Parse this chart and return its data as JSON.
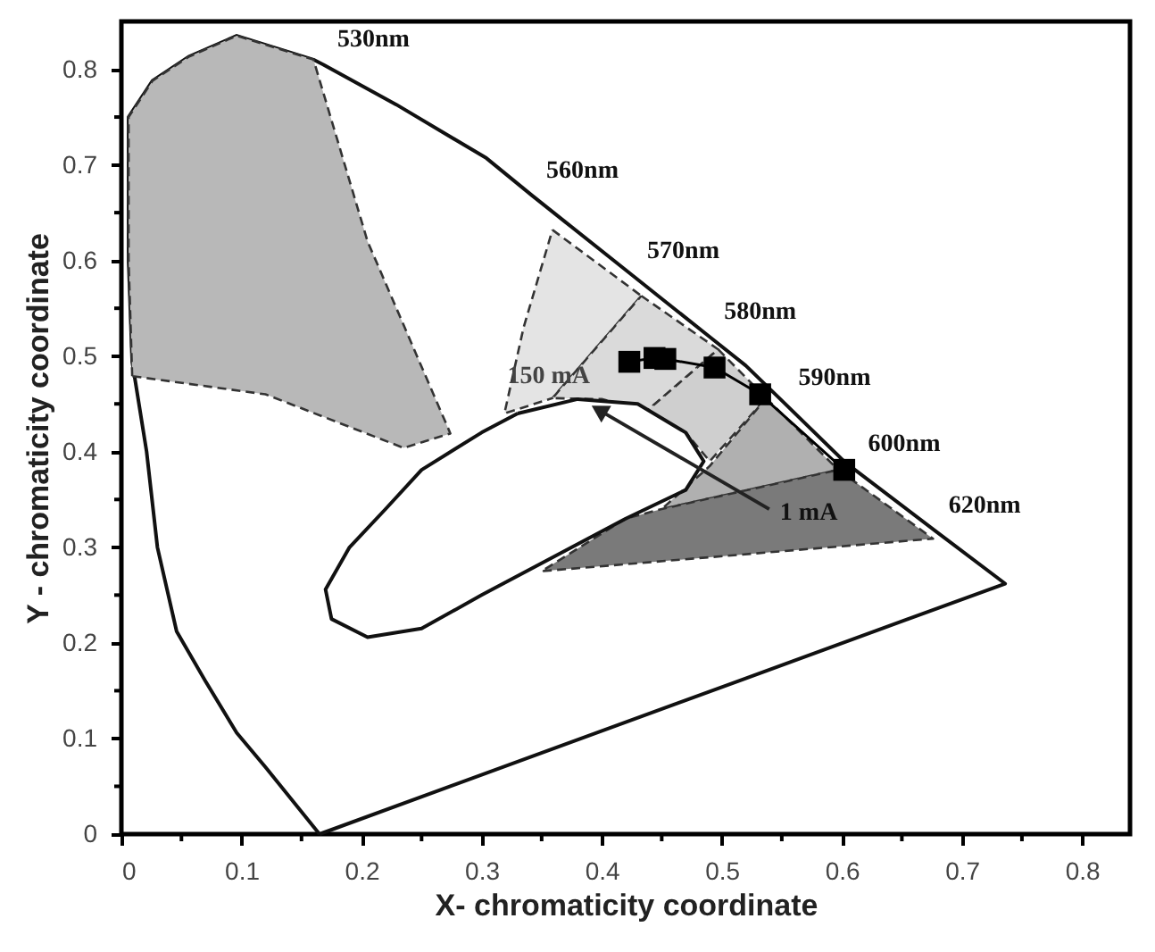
{
  "chart_data": {
    "type": "line",
    "xlabel": "X- chromaticity coordinate",
    "ylabel": "Y - chromaticity coordinate",
    "xlim": [
      0,
      0.84
    ],
    "ylim": [
      0,
      0.85
    ],
    "xticks": [
      0,
      {
        "value": 0.05,
        "label": null
      },
      0.1,
      {
        "value": 0.15,
        "label": null
      },
      0.2,
      {
        "value": 0.25,
        "label": null
      },
      0.3,
      {
        "value": 0.35,
        "label": null
      },
      0.4,
      {
        "value": 0.45,
        "label": null
      },
      0.5,
      {
        "value": 0.55,
        "label": null
      },
      0.6,
      {
        "value": 0.65,
        "label": null
      },
      0.7,
      {
        "value": 0.75,
        "label": null
      },
      0.8
    ],
    "yticks": [
      0,
      {
        "value": 0.05,
        "label": null
      },
      0.1,
      {
        "value": 0.15,
        "label": null
      },
      0.2,
      {
        "value": 0.25,
        "label": null
      },
      0.3,
      {
        "value": 0.35,
        "label": null
      },
      0.4,
      {
        "value": 0.45,
        "label": null
      },
      0.5,
      {
        "value": 0.55,
        "label": null
      },
      0.6,
      {
        "value": 0.65,
        "label": null
      },
      0.7,
      {
        "value": 0.75,
        "label": null
      },
      0.8
    ],
    "grid": false,
    "series": [
      {
        "type": "area",
        "color": "#ffffff",
        "line_style": "solid",
        "x": [
          0.165,
          0.12,
          0.096,
          0.07,
          0.046,
          0.03,
          0.021,
          0.009,
          0.006,
          0.006,
          0.026,
          0.056,
          0.096,
          0.16,
          0.168,
          0.229,
          0.304,
          0.342,
          0.37,
          0.426,
          0.45,
          0.49,
          0.52,
          0.552,
          0.601,
          0.61,
          0.677,
          0.736,
          0.165
        ],
        "values": [
          0,
          0.07,
          0.106,
          0.16,
          0.212,
          0.3,
          0.4,
          0.494,
          0.6,
          0.75,
          0.788,
          0.813,
          0.835,
          0.81,
          0.805,
          0.763,
          0.707,
          0.668,
          0.64,
          0.584,
          0.56,
          0.52,
          0.49,
          0.451,
          0.391,
          0.382,
          0.318,
          0.262,
          0
        ]
      },
      {
        "type": "area",
        "color": "#b8b8b8",
        "line_style": "dashed",
        "x": [
          0.009,
          0.006,
          0.006,
          0.026,
          0.056,
          0.096,
          0.16,
          0.205,
          0.274,
          0.235,
          0.12,
          0.009
        ],
        "values": [
          0.479,
          0.6,
          0.75,
          0.788,
          0.813,
          0.835,
          0.81,
          0.62,
          0.419,
          0.404,
          0.46,
          0.479
        ]
      },
      {
        "type": "area",
        "color": "#e4e4e4",
        "line_style": "dashed",
        "x": [
          0.359,
          0.433,
          0.359,
          0.319,
          0.335,
          0.359
        ],
        "values": [
          0.632,
          0.563,
          0.456,
          0.44,
          0.53,
          0.632
        ]
      },
      {
        "type": "area",
        "color": "#dadada",
        "line_style": "dashed",
        "x": [
          0.433,
          0.497,
          0.438,
          0.4,
          0.359,
          0.433
        ],
        "values": [
          0.563,
          0.507,
          0.443,
          0.455,
          0.456,
          0.563
        ]
      },
      {
        "type": "area",
        "color": "#cfcfcf",
        "line_style": "dashed",
        "x": [
          0.497,
          0.537,
          0.49,
          0.47,
          0.438,
          0.497
        ],
        "values": [
          0.507,
          0.456,
          0.39,
          0.42,
          0.443,
          0.507
        ]
      },
      {
        "type": "area",
        "color": "#b0b0b0",
        "line_style": "dashed",
        "x": [
          0.537,
          0.597,
          0.45,
          0.49,
          0.537
        ],
        "values": [
          0.456,
          0.381,
          0.34,
          0.385,
          0.456
        ]
      },
      {
        "type": "area",
        "color": "#7a7a7a",
        "line_style": "dashed",
        "x": [
          0.597,
          0.676,
          0.35,
          0.42,
          0.45,
          0.597
        ],
        "values": [
          0.381,
          0.309,
          0.275,
          0.33,
          0.34,
          0.381
        ]
      },
      {
        "type": "area",
        "color": "#ffffff",
        "line_style": "solid",
        "x": [
          0.33,
          0.38,
          0.43,
          0.47,
          0.485,
          0.47,
          0.42,
          0.36,
          0.3,
          0.25,
          0.205,
          0.175,
          0.17,
          0.19,
          0.22,
          0.25,
          0.3,
          0.33
        ],
        "values": [
          0.44,
          0.455,
          0.45,
          0.42,
          0.39,
          0.36,
          0.33,
          0.29,
          0.25,
          0.215,
          0.206,
          0.225,
          0.256,
          0.3,
          0.34,
          0.381,
          0.42,
          0.44
        ]
      },
      {
        "type": "scatter",
        "color": "#000000",
        "line_style": "solid",
        "marker": "square",
        "x": [
          0.423,
          0.444,
          0.453,
          0.494,
          0.532,
          0.602
        ],
        "values": [
          0.494,
          0.498,
          0.497,
          0.488,
          0.46,
          0.381
        ]
      }
    ],
    "annotations": [
      {
        "text": "530nm",
        "x": 0.168,
        "y": 0.805
      },
      {
        "text": "560nm",
        "x": 0.342,
        "y": 0.668
      },
      {
        "text": "570nm",
        "x": 0.426,
        "y": 0.584
      },
      {
        "text": "580nm",
        "x": 0.49,
        "y": 0.52
      },
      {
        "text": "590nm",
        "x": 0.552,
        "y": 0.451
      },
      {
        "text": "600nm",
        "x": 0.61,
        "y": 0.382
      },
      {
        "text": "620nm",
        "x": 0.677,
        "y": 0.318
      },
      {
        "text": "150 mA",
        "x": 0.423,
        "y": 0.494
      },
      {
        "text": "1 mA",
        "x": 0.602,
        "y": 0.381
      }
    ]
  }
}
